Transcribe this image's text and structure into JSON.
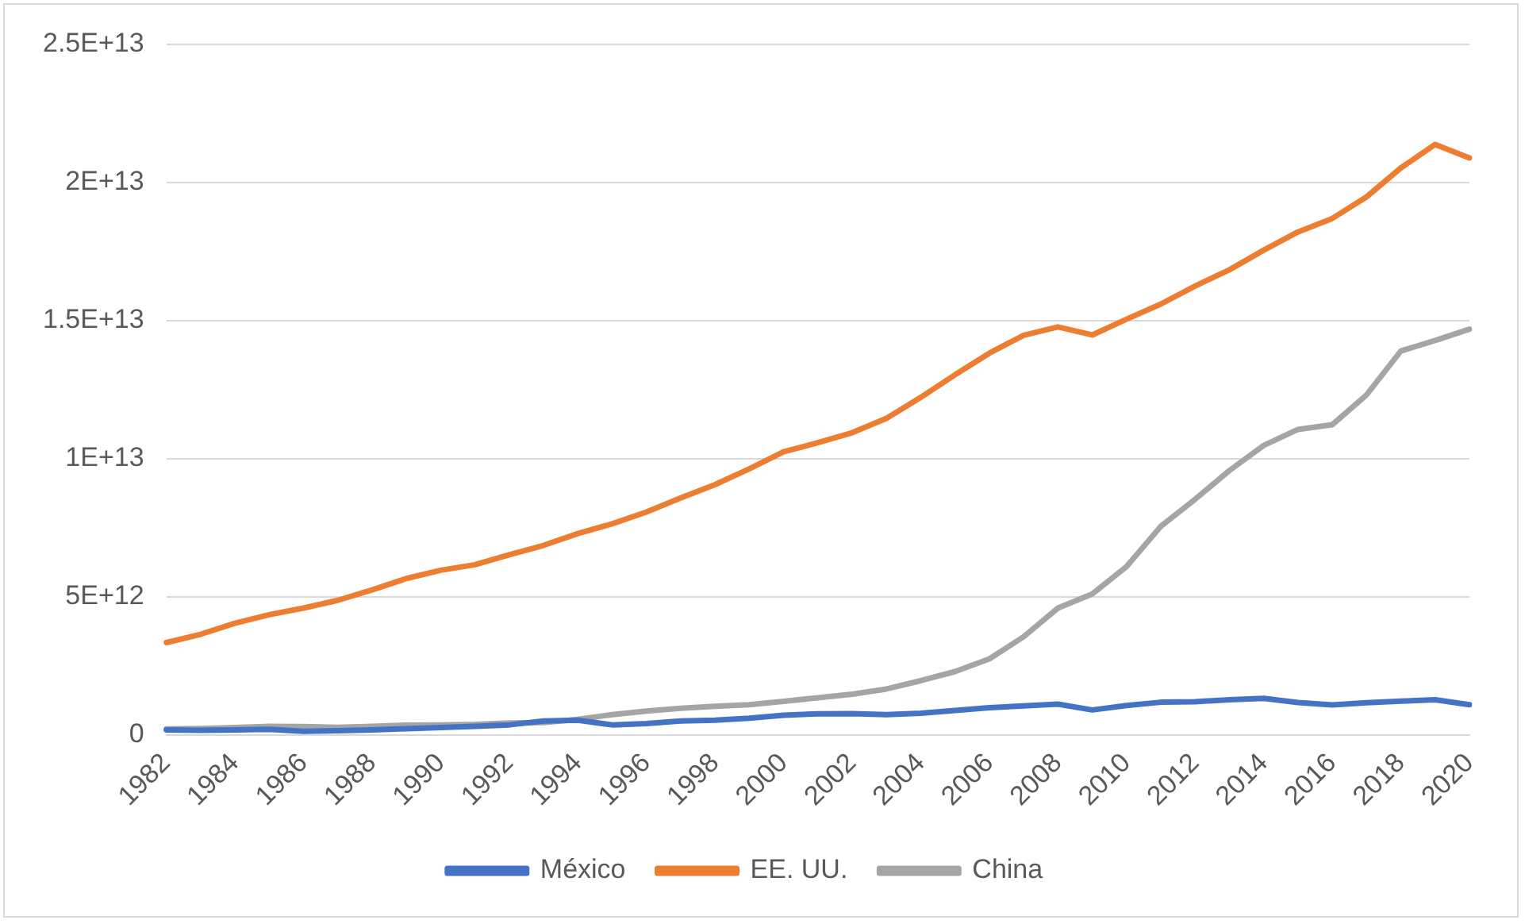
{
  "chart_data": {
    "type": "line",
    "categories": [
      "1982",
      null,
      "1984",
      null,
      "1986",
      null,
      "1988",
      null,
      "1990",
      null,
      "1992",
      null,
      "1994",
      null,
      "1996",
      null,
      "1998",
      null,
      "2000",
      null,
      "2002",
      null,
      "2004",
      null,
      "2006",
      null,
      "2008",
      null,
      "2010",
      null,
      "2012",
      null,
      "2014",
      null,
      "2016",
      null,
      "2018",
      null,
      "2020"
    ],
    "series": [
      {
        "name": "México",
        "color": "#4472c4",
        "values": [
          180000000000.0,
          160000000000.0,
          180000000000.0,
          200000000000.0,
          130000000000.0,
          150000000000.0,
          180000000000.0,
          220000000000.0,
          260000000000.0,
          310000000000.0,
          360000000000.0,
          500000000000.0,
          530000000000.0,
          360000000000.0,
          410000000000.0,
          500000000000.0,
          530000000000.0,
          600000000000.0,
          710000000000.0,
          760000000000.0,
          770000000000.0,
          730000000000.0,
          780000000000.0,
          880000000000.0,
          980000000000.0,
          1050000000000.0,
          1110000000000.0,
          900000000000.0,
          1060000000000.0,
          1180000000000.0,
          1200000000000.0,
          1270000000000.0,
          1320000000000.0,
          1170000000000.0,
          1080000000000.0,
          1160000000000.0,
          1220000000000.0,
          1270000000000.0,
          1090000000000.0
        ]
      },
      {
        "name": "EE. UU.",
        "color": "#ed7d31",
        "values": [
          3340000000000.0,
          3640000000000.0,
          4040000000000.0,
          4350000000000.0,
          4590000000000.0,
          4870000000000.0,
          5250000000000.0,
          5660000000000.0,
          5960000000000.0,
          6160000000000.0,
          6520000000000.0,
          6860000000000.0,
          7290000000000.0,
          7640000000000.0,
          8070000000000.0,
          8580000000000.0,
          9060000000000.0,
          9630000000000.0,
          10250000000000.0,
          10580000000000.0,
          10940000000000.0,
          11460000000000.0,
          12220000000000.0,
          13040000000000.0,
          13820000000000.0,
          14470000000000.0,
          14770000000000.0,
          14480000000000.0,
          15050000000000.0,
          15600000000000.0,
          16250000000000.0,
          16840000000000.0,
          17550000000000.0,
          18210000000000.0,
          18700000000000.0,
          19480000000000.0,
          20530000000000.0,
          21380000000000.0,
          20890000000000.0
        ]
      },
      {
        "name": "China",
        "color": "#a5a5a5",
        "values": [
          210000000000.0,
          230000000000.0,
          260000000000.0,
          310000000000.0,
          300000000000.0,
          270000000000.0,
          310000000000.0,
          350000000000.0,
          360000000000.0,
          380000000000.0,
          430000000000.0,
          440000000000.0,
          560000000000.0,
          730000000000.0,
          860000000000.0,
          960000000000.0,
          1030000000000.0,
          1090000000000.0,
          1210000000000.0,
          1340000000000.0,
          1470000000000.0,
          1660000000000.0,
          1960000000000.0,
          2290000000000.0,
          2750000000000.0,
          3550000000000.0,
          4590000000000.0,
          5100000000000.0,
          6090000000000.0,
          7550000000000.0,
          8530000000000.0,
          9570000000000.0,
          10480000000000.0,
          11060000000000.0,
          11230000000000.0,
          12310000000000.0,
          13900000000000.0,
          14280000000000.0,
          14690000000000.0
        ]
      }
    ],
    "ylim": [
      0,
      25000000000000.0
    ],
    "yticks": [
      0,
      {
        "value": 5000000000000.0,
        "label": "5E+12"
      },
      {
        "value": 10000000000000.0,
        "label": "1E+13"
      },
      {
        "value": 15000000000000.0,
        "label": "1.5E+13"
      },
      {
        "value": 20000000000000.0,
        "label": "2E+13"
      },
      {
        "value": 25000000000000.0,
        "label": "2.5E+13"
      }
    ],
    "grid": "y",
    "legend": "bottom",
    "marker": "none",
    "line_style": "solid"
  }
}
